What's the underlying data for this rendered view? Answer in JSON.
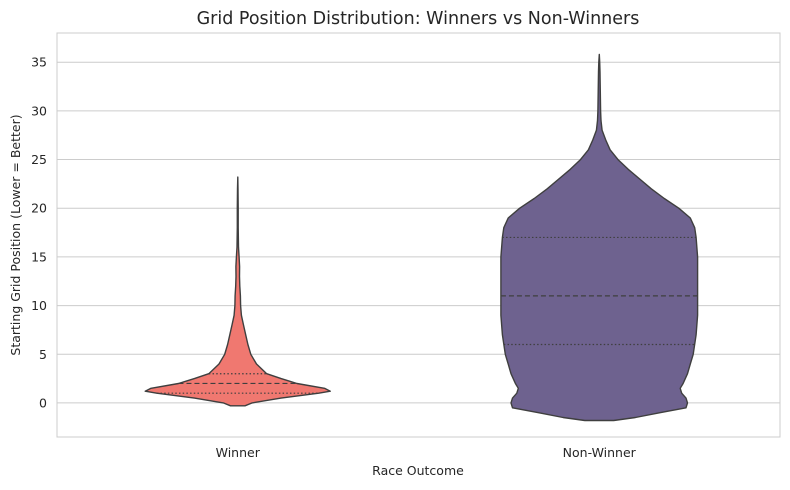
{
  "chart_data": {
    "type": "violin",
    "title": "Grid Position Distribution: Winners vs Non-Winners",
    "xlabel": "Race Outcome",
    "ylabel": "Starting Grid Position (Lower = Better)",
    "categories": [
      "Winner",
      "Non-Winner"
    ],
    "colors": [
      "#f07870",
      "#6e628f"
    ],
    "ylim": [
      -3.5,
      38
    ],
    "yticks": [
      0,
      5,
      10,
      15,
      20,
      25,
      30,
      35
    ],
    "grid": true,
    "violins": [
      {
        "category": "Winner",
        "q1": 1,
        "median": 2,
        "q3": 3,
        "profile": [
          [
            -0.3,
            0.05
          ],
          [
            0,
            0.1
          ],
          [
            0.5,
            0.3
          ],
          [
            1,
            0.56
          ],
          [
            1.2,
            0.64
          ],
          [
            1.5,
            0.6
          ],
          [
            2,
            0.41
          ],
          [
            2.5,
            0.3
          ],
          [
            3,
            0.2
          ],
          [
            4,
            0.13
          ],
          [
            5,
            0.09
          ],
          [
            6,
            0.07
          ],
          [
            7,
            0.055
          ],
          [
            8,
            0.04
          ],
          [
            9,
            0.025
          ],
          [
            10,
            0.02
          ],
          [
            11,
            0.018
          ],
          [
            12,
            0.014
          ],
          [
            13,
            0.012
          ],
          [
            14,
            0.013
          ],
          [
            15,
            0.009
          ],
          [
            16,
            0.005
          ],
          [
            18,
            0.003
          ],
          [
            20,
            0.003
          ],
          [
            22,
            0.002
          ],
          [
            23.2,
            0
          ]
        ]
      },
      {
        "category": "Non-Winner",
        "q1": 6,
        "median": 11,
        "q3": 17,
        "profile": [
          [
            -1.8,
            0.1
          ],
          [
            -1.5,
            0.25
          ],
          [
            -1,
            0.42
          ],
          [
            -0.5,
            0.6
          ],
          [
            0,
            0.61
          ],
          [
            0.5,
            0.6
          ],
          [
            1,
            0.57
          ],
          [
            1.5,
            0.56
          ],
          [
            2,
            0.58
          ],
          [
            3,
            0.61
          ],
          [
            4,
            0.63
          ],
          [
            5,
            0.65
          ],
          [
            7,
            0.67
          ],
          [
            9,
            0.68
          ],
          [
            11,
            0.68
          ],
          [
            13,
            0.68
          ],
          [
            15,
            0.68
          ],
          [
            17,
            0.67
          ],
          [
            18,
            0.66
          ],
          [
            19,
            0.63
          ],
          [
            20,
            0.55
          ],
          [
            21,
            0.45
          ],
          [
            22,
            0.36
          ],
          [
            23,
            0.28
          ],
          [
            24,
            0.2
          ],
          [
            25,
            0.13
          ],
          [
            26,
            0.075
          ],
          [
            27,
            0.045
          ],
          [
            28,
            0.02
          ],
          [
            29,
            0.012
          ],
          [
            30,
            0.009
          ],
          [
            32,
            0.007
          ],
          [
            34,
            0.005
          ],
          [
            35,
            0.003
          ],
          [
            35.8,
            0
          ]
        ]
      }
    ]
  }
}
